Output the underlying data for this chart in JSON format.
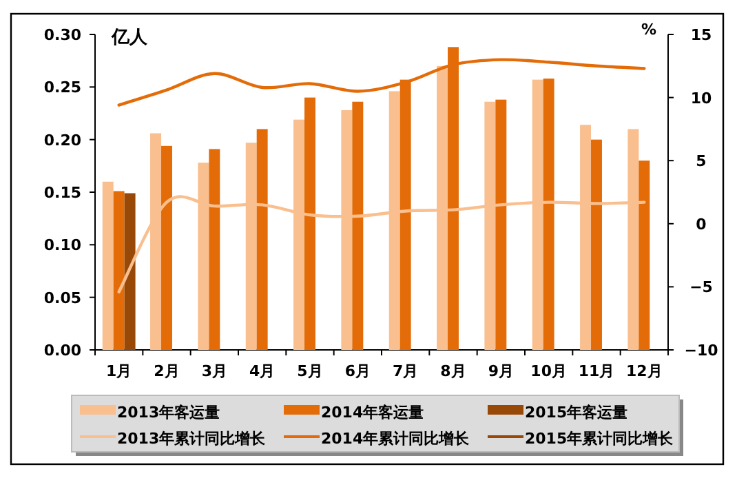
{
  "chart_data": {
    "type": "bar",
    "ylabel": "亿人",
    "y2label": "%",
    "categories": [
      "1月",
      "2月",
      "3月",
      "4月",
      "5月",
      "6月",
      "7月",
      "8月",
      "9月",
      "10月",
      "11月",
      "12月"
    ],
    "series": [
      {
        "name": "2013年客运量",
        "color": "#f9bf8f",
        "values": [
          0.16,
          0.206,
          0.178,
          0.197,
          0.219,
          0.228,
          0.246,
          0.27,
          0.236,
          0.257,
          0.214,
          0.21
        ]
      },
      {
        "name": "2014年客运量",
        "color": "#e36c09",
        "values": [
          0.151,
          0.194,
          0.191,
          0.21,
          0.24,
          0.236,
          0.257,
          0.288,
          0.238,
          0.258,
          0.2,
          0.18
        ]
      },
      {
        "name": "2015年客运量",
        "color": "#984807",
        "values": [
          0.149,
          null,
          null,
          null,
          null,
          null,
          null,
          null,
          null,
          null,
          null,
          null
        ]
      },
      {
        "name": "2013年累计同比增长",
        "type": "line",
        "axis": "y2",
        "color": "#f9bf8f",
        "values": [
          -5.4,
          1.7,
          1.4,
          1.5,
          0.7,
          0.6,
          1.0,
          1.1,
          1.5,
          1.7,
          1.6,
          1.7
        ]
      },
      {
        "name": "2014年累计同比增长",
        "type": "line",
        "axis": "y2",
        "color": "#e36c09",
        "values": [
          9.4,
          10.6,
          11.9,
          10.8,
          11.1,
          10.5,
          11.2,
          12.6,
          13.0,
          12.8,
          12.5,
          12.3
        ]
      },
      {
        "name": "2015年累计同比增长",
        "type": "line",
        "axis": "y2",
        "color": "#984807",
        "values": [
          null,
          null,
          null,
          null,
          null,
          null,
          null,
          null,
          null,
          null,
          null,
          null
        ]
      }
    ],
    "ylim": [
      0,
      0.3
    ],
    "yticks": [
      {
        "value": 0,
        "label": "0.00"
      },
      {
        "value": 0.05,
        "label": "0.05"
      },
      {
        "value": 0.1,
        "label": "0.10"
      },
      {
        "value": 0.15,
        "label": "0.15"
      },
      {
        "value": 0.2,
        "label": "0.20"
      },
      {
        "value": 0.25,
        "label": "0.25"
      },
      {
        "value": 0.3,
        "label": "0.30"
      }
    ],
    "y2lim": [
      -10,
      15
    ],
    "y2ticks": [
      -10,
      -5,
      0,
      5,
      10,
      15
    ],
    "legend": "bottom",
    "grid": false
  }
}
